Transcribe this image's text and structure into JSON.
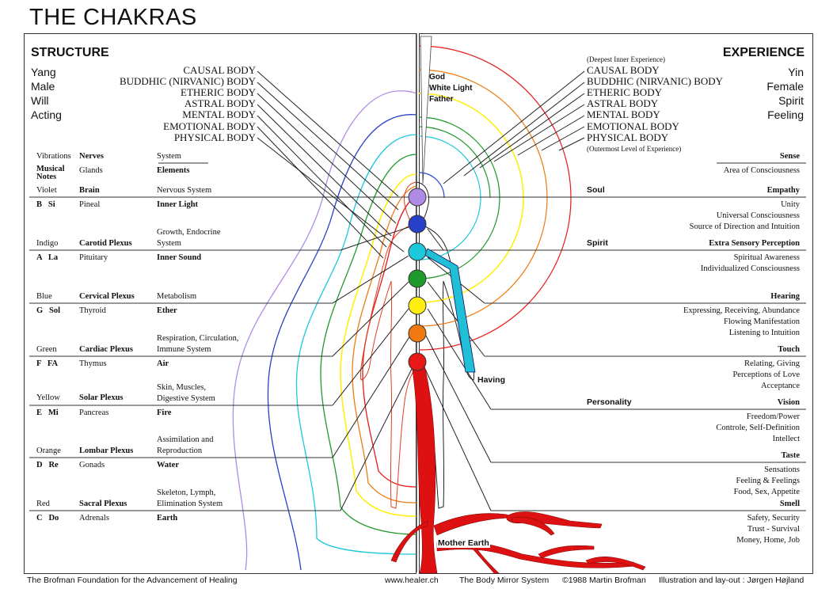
{
  "title": "THE CHAKRAS",
  "left": {
    "heading": "STRUCTURE",
    "qualities": [
      "Yang",
      "Male",
      "Will",
      "Acting"
    ],
    "bodies": [
      "CAUSAL BODY",
      "BUDDHIC (NIRVANIC) BODY",
      "ETHERIC BODY",
      "ASTRAL BODY",
      "MENTAL BODY",
      "EMOTIONAL  BODY",
      "PHYSICAL BODY"
    ],
    "col_headers": {
      "vibrations": "Vibrations",
      "nerves": "Nerves",
      "system": "System",
      "musical_notes": "Musical Notes",
      "glands": "Glands",
      "elements": "Elements"
    },
    "chakras": [
      {
        "color": "Violet",
        "nerve": "Brain",
        "system": "Nervous System",
        "note": "B   Si",
        "gland": "Pineal",
        "element": "Inner Light"
      },
      {
        "color": "Indigo",
        "nerve": "Carotid Plexus",
        "system": "Growth, Endocrine System",
        "note": "A   La",
        "gland": "Pituitary",
        "element": "Inner Sound"
      },
      {
        "color": "Blue",
        "nerve": "Cervical Plexus",
        "system": "Metabolism",
        "note": "G   Sol",
        "gland": "Thyroid",
        "element": "Ether"
      },
      {
        "color": "Green",
        "nerve": "Cardiac Plexus",
        "system": "Respiration, Circulation, Immune System",
        "note": "F   FA",
        "gland": "Thymus",
        "element": "Air"
      },
      {
        "color": "Yellow",
        "nerve": "Solar Plexus",
        "system": "Skin, Muscles, Digestive System",
        "note": "E   Mi",
        "gland": "Pancreas",
        "element": "Fire"
      },
      {
        "color": "Orange",
        "nerve": "Lombar Plexus",
        "system": "Assimilation and Reproduction",
        "note": "D   Re",
        "gland": "Gonads",
        "element": "Water"
      },
      {
        "color": "Red",
        "nerve": "Sacral Plexus",
        "system": "Skeleton, Lymph, Elimination System",
        "note": "C   Do",
        "gland": "Adrenals",
        "element": "Earth"
      }
    ]
  },
  "right": {
    "heading": "EXPERIENCE",
    "qualities": [
      "Yin",
      "Female",
      "Spirit",
      "Feeling"
    ],
    "deepest": "(Deepest Inner Experience)",
    "outermost": "(Outermost Level of Experience)",
    "bodies": [
      "CAUSAL BODY",
      "BUDDHIC (NIRVANIC) BODY",
      "ETHERIC BODY",
      "ASTRAL BODY",
      "MENTAL BODY",
      "EMOTIONAL  BODY",
      "PHYSICAL BODY"
    ],
    "sense_header": "Sense",
    "area_header": "Area of Consciousness",
    "rows": [
      {
        "group": "Soul",
        "sense": "Empathy",
        "lines": [
          "Unity",
          "Universal Consciousness",
          "Source of Direction and Intuition"
        ]
      },
      {
        "group": "Spirit",
        "sense": "Extra Sensory Perception",
        "lines": [
          "Spiritual Awareness",
          "Individualized Consciousness"
        ]
      },
      {
        "group": "",
        "sense": "Hearing",
        "lines": [
          "Expressing, Receiving, Abundance",
          "Flowing Manifestation",
          "Listening to Intuition"
        ]
      },
      {
        "group": "",
        "sense": "Touch",
        "lines": [
          "Relating, Giving",
          "Perceptions of Love",
          "Acceptance"
        ]
      },
      {
        "group": "Personality",
        "sense": "Vision",
        "lines": [
          "Freedom/Power",
          "Controle, Self-Definition",
          "Intellect"
        ]
      },
      {
        "group": "",
        "sense": "Taste",
        "lines": [
          "Sensations",
          "Feeling & Feelings",
          "Food, Sex, Appetite"
        ]
      },
      {
        "group": "",
        "sense": "Smell",
        "lines": [
          "Safety, Security",
          "Trust - Survival",
          "Money, Home, Job"
        ]
      }
    ]
  },
  "labels": {
    "god": "God",
    "white_light": "White Light",
    "father": "Father",
    "having": "Having",
    "mother_earth": "Mother Earth"
  },
  "footer": {
    "foundation": "The Brofman Foundation for the Advancement of Healing",
    "url": "www.healer.ch",
    "system": "The Body Mirror System",
    "copyright": "©1988 Martin Brofman",
    "credit": "Illustration and lay-out : Jørgen Højland"
  },
  "colors": {
    "violet": "#b08be6",
    "indigo": "#2840c8",
    "blue": "#1cc8dc",
    "green": "#1f9a2a",
    "yellow": "#ffee10",
    "orange": "#f07a10",
    "red": "#e81818",
    "river": "#dd1111",
    "channel": "#20bfd6"
  }
}
